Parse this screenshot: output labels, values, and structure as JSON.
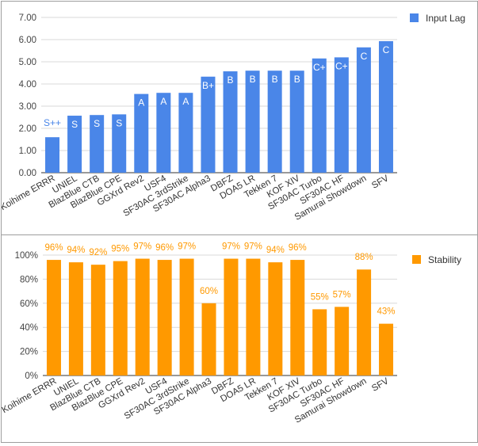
{
  "chart_data": [
    {
      "type": "bar",
      "categories": [
        "Koihime ERRR",
        "UNIEL",
        "BlazBlue CTB",
        "BlazBlue CPE",
        "GGXrd Rev2",
        "USF4",
        "SF30AC 3rdStrike",
        "SF30AC Alpha3",
        "DBFZ",
        "DOA5 LR",
        "Tekken 7",
        "KOF XIV",
        "SF30AC Turbo",
        "SF30AC HF",
        "Samurai Showdown",
        "SFV"
      ],
      "series": [
        {
          "name": "Input Lag",
          "values": [
            1.6,
            2.57,
            2.6,
            2.63,
            3.55,
            3.6,
            3.6,
            4.33,
            4.57,
            4.6,
            4.6,
            4.6,
            5.15,
            5.2,
            5.65,
            5.93
          ],
          "labels": [
            "S++",
            "S",
            "S",
            "S",
            "A",
            "A",
            "A",
            "B+",
            "B",
            "B",
            "B",
            "B",
            "C+",
            "C+",
            "C",
            "C"
          ]
        }
      ],
      "ylim": [
        0,
        7
      ],
      "yticks": [
        "0.00",
        "1.00",
        "2.00",
        "3.00",
        "4.00",
        "5.00",
        "6.00",
        "7.00"
      ],
      "grid": true,
      "legend_position": "top-right",
      "color": "#4a86e8",
      "label_color_outside": "#4a86e8",
      "label_color_inside": "#ffffff"
    },
    {
      "type": "bar",
      "categories": [
        "Koihime ERRR",
        "UNIEL",
        "BlazBlue CTB",
        "BlazBlue CPE",
        "GGXrd Rev2",
        "USF4",
        "SF30AC 3rdStrike",
        "SF30AC Alpha3",
        "DBFZ",
        "DOA5 LR",
        "Tekken 7",
        "KOF XIV",
        "SF30AC Turbo",
        "SF30AC HF",
        "Samurai Showdown",
        "SFV"
      ],
      "series": [
        {
          "name": "Stability",
          "values": [
            96,
            94,
            92,
            95,
            97,
            96,
            97,
            60,
            97,
            97,
            94,
            96,
            55,
            57,
            88,
            43
          ],
          "labels": [
            "96%",
            "94%",
            "92%",
            "95%",
            "97%",
            "96%",
            "97%",
            "60%",
            "97%",
            "97%",
            "94%",
            "96%",
            "55%",
            "57%",
            "88%",
            "43%"
          ]
        }
      ],
      "ylim": [
        0,
        100
      ],
      "yticks": [
        "0%",
        "20%",
        "40%",
        "60%",
        "80%",
        "100%"
      ],
      "grid": true,
      "legend_position": "top-right",
      "color": "#ff9900",
      "label_color": "#ff9900"
    }
  ]
}
